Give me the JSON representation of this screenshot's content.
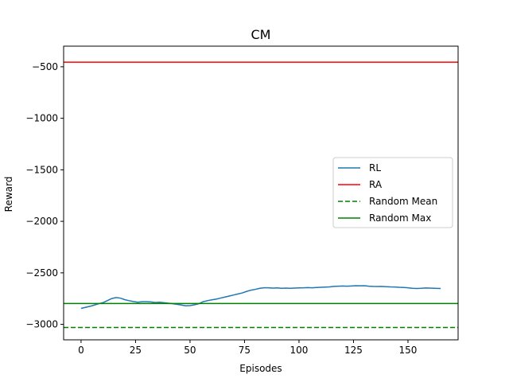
{
  "chart_data": {
    "type": "line",
    "title": "CM",
    "xlabel": "Episodes",
    "ylabel": "Reward",
    "xlim": [
      -8,
      173
    ],
    "ylim": [
      -3150,
      -300
    ],
    "xticks": [
      0,
      25,
      50,
      75,
      100,
      125,
      150
    ],
    "yticks": [
      -3000,
      -2500,
      -2000,
      -1500,
      -1000,
      -500
    ],
    "grid": false,
    "legend_position": "center-right",
    "series": [
      {
        "name": "RL",
        "kind": "line",
        "color": "#1f77b4",
        "dash": "solid",
        "x": [
          0,
          2,
          5,
          8,
          10,
          12,
          14,
          16,
          18,
          20,
          22,
          24,
          26,
          28,
          30,
          32,
          34,
          36,
          38,
          40,
          42,
          44,
          46,
          48,
          50,
          52,
          54,
          56,
          58,
          60,
          62,
          64,
          66,
          68,
          70,
          72,
          74,
          76,
          78,
          80,
          82,
          84,
          86,
          88,
          90,
          92,
          94,
          96,
          98,
          100,
          102,
          104,
          106,
          108,
          110,
          112,
          114,
          116,
          118,
          120,
          122,
          124,
          126,
          128,
          130,
          132,
          134,
          136,
          138,
          140,
          142,
          144,
          146,
          148,
          150,
          152,
          154,
          156,
          158,
          160,
          162,
          165
        ],
        "values": [
          -2845,
          -2835,
          -2820,
          -2800,
          -2790,
          -2770,
          -2750,
          -2740,
          -2745,
          -2760,
          -2770,
          -2778,
          -2785,
          -2780,
          -2780,
          -2782,
          -2788,
          -2785,
          -2790,
          -2795,
          -2800,
          -2805,
          -2812,
          -2820,
          -2818,
          -2810,
          -2800,
          -2780,
          -2770,
          -2762,
          -2755,
          -2745,
          -2735,
          -2725,
          -2715,
          -2705,
          -2695,
          -2680,
          -2668,
          -2660,
          -2650,
          -2645,
          -2645,
          -2648,
          -2646,
          -2650,
          -2648,
          -2650,
          -2648,
          -2646,
          -2645,
          -2643,
          -2645,
          -2642,
          -2640,
          -2638,
          -2636,
          -2632,
          -2630,
          -2628,
          -2630,
          -2628,
          -2625,
          -2626,
          -2625,
          -2630,
          -2632,
          -2633,
          -2632,
          -2634,
          -2636,
          -2637,
          -2640,
          -2642,
          -2645,
          -2650,
          -2652,
          -2650,
          -2647,
          -2648,
          -2650,
          -2652
        ]
      },
      {
        "name": "RA",
        "kind": "hline",
        "color": "#ff0000",
        "dash": "solid",
        "y": -455
      },
      {
        "name": "Random Mean",
        "kind": "hline",
        "color": "#008000",
        "dash": "dashed",
        "y": -3030
      },
      {
        "name": "Random Max",
        "kind": "hline",
        "color": "#008000",
        "dash": "solid",
        "y": -2798
      }
    ]
  }
}
